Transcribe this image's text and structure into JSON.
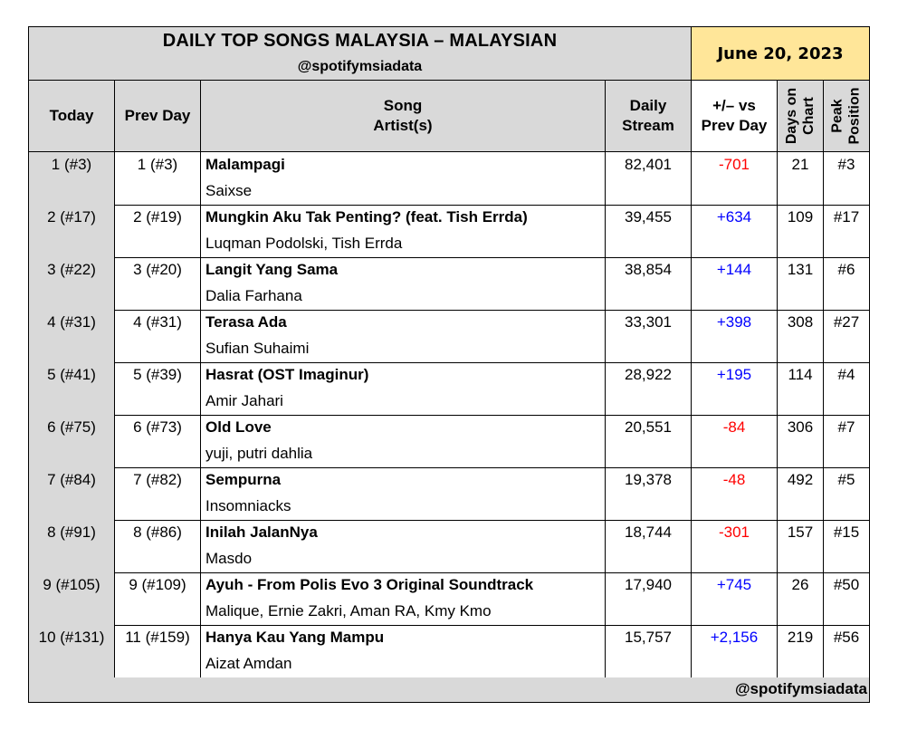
{
  "chart_data": {
    "type": "table",
    "title": "DAILY TOP SONGS MALAYSIA – MALAYSIAN",
    "subtitle": "@spotifymsiadata",
    "date": "June 20, 2023",
    "footer": "@spotifymsiadata",
    "colors": {
      "header_gray": "#d9d9d9",
      "date_bg": "#ffe699",
      "positive": "#0000ff",
      "negative": "#ff0000"
    },
    "columns": {
      "today": "Today",
      "prev_day": "Prev Day",
      "song_line1": "Song",
      "song_line2": "Artist(s)",
      "stream_line1": "Daily",
      "stream_line2": "Stream",
      "delta_line1": "+/– vs",
      "delta_line2": "Prev Day",
      "days_line1": "Days on",
      "days_line2": "Chart",
      "peak_line1": "Peak",
      "peak_line2": "Position"
    },
    "rows": [
      {
        "today": "1 (#3)",
        "prev": "1 (#3)",
        "song": "Malampagi",
        "artist": "Saixse",
        "stream": "82,401",
        "delta": "-701",
        "dir": "down",
        "days": "21",
        "peak": "#3"
      },
      {
        "today": "2 (#17)",
        "prev": "2 (#19)",
        "song": "Mungkin Aku Tak Penting? (feat. Tish Errda)",
        "artist": "Luqman Podolski, Tish Errda",
        "stream": "39,455",
        "delta": "+634",
        "dir": "up",
        "days": "109",
        "peak": "#17"
      },
      {
        "today": "3 (#22)",
        "prev": "3 (#20)",
        "song": "Langit Yang Sama",
        "artist": "Dalia Farhana",
        "stream": "38,854",
        "delta": "+144",
        "dir": "up",
        "days": "131",
        "peak": "#6"
      },
      {
        "today": "4 (#31)",
        "prev": "4 (#31)",
        "song": "Terasa Ada",
        "artist": "Sufian Suhaimi",
        "stream": "33,301",
        "delta": "+398",
        "dir": "up",
        "days": "308",
        "peak": "#27"
      },
      {
        "today": "5 (#41)",
        "prev": "5 (#39)",
        "song": "Hasrat (OST Imaginur)",
        "artist": "Amir Jahari",
        "stream": "28,922",
        "delta": "+195",
        "dir": "up",
        "days": "114",
        "peak": "#4"
      },
      {
        "today": "6 (#75)",
        "prev": "6 (#73)",
        "song": "Old Love",
        "artist": "yuji, putri dahlia",
        "stream": "20,551",
        "delta": "-84",
        "dir": "down",
        "days": "306",
        "peak": "#7"
      },
      {
        "today": "7 (#84)",
        "prev": "7 (#82)",
        "song": "Sempurna",
        "artist": "Insomniacks",
        "stream": "19,378",
        "delta": "-48",
        "dir": "down",
        "days": "492",
        "peak": "#5"
      },
      {
        "today": "8 (#91)",
        "prev": "8 (#86)",
        "song": "Inilah JalanNya",
        "artist": "Masdo",
        "stream": "18,744",
        "delta": "-301",
        "dir": "down",
        "days": "157",
        "peak": "#15"
      },
      {
        "today": "9 (#105)",
        "prev": "9 (#109)",
        "song": "Ayuh - From Polis Evo 3 Original Soundtrack",
        "artist": "Malique, Ernie Zakri, Aman RA, Kmy Kmo",
        "stream": "17,940",
        "delta": "+745",
        "dir": "up",
        "days": "26",
        "peak": "#50"
      },
      {
        "today": "10 (#131)",
        "prev": "11 (#159)",
        "song": "Hanya Kau Yang Mampu",
        "artist": "Aizat Amdan",
        "stream": "15,757",
        "delta": "+2,156",
        "dir": "up",
        "days": "219",
        "peak": "#56"
      }
    ]
  }
}
